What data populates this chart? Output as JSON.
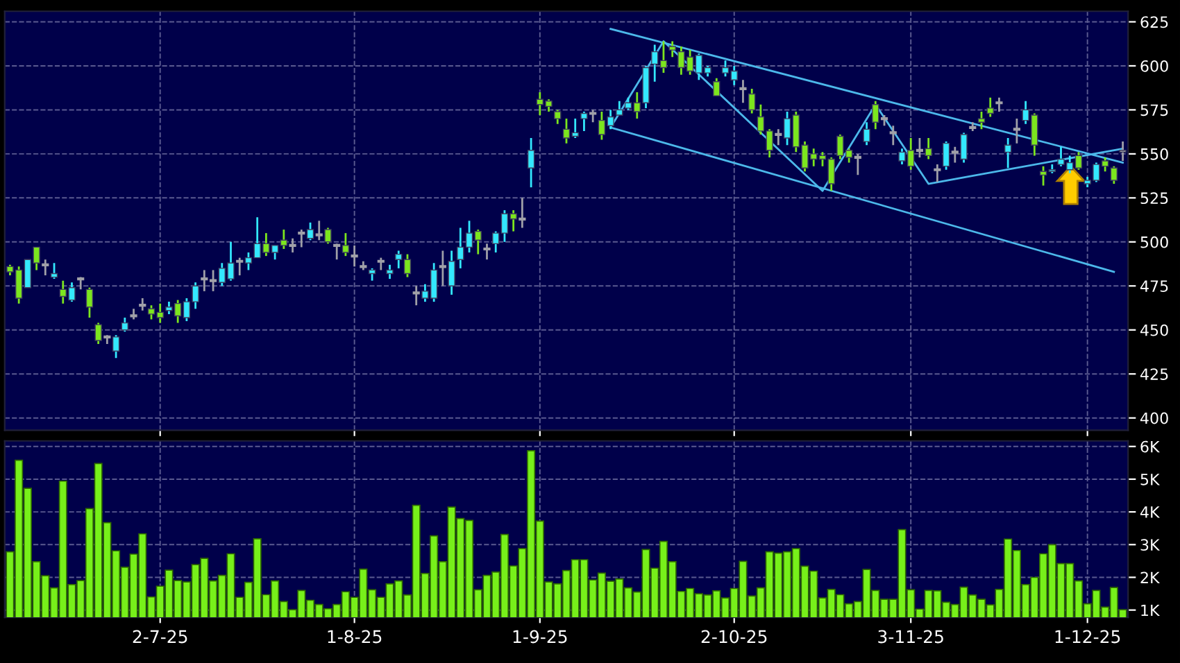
{
  "chart_data": [
    {
      "type": "candlestick",
      "ylim": [
        393,
        631
      ],
      "yticks": [
        400,
        425,
        450,
        475,
        500,
        525,
        550,
        575,
        600,
        625
      ],
      "grid": true,
      "tick_labels": "y",
      "categories": [
        null,
        null,
        null,
        null,
        null,
        null,
        null,
        null,
        null,
        null,
        null,
        null,
        null,
        null,
        null,
        null,
        null,
        null,
        null,
        null,
        null,
        null,
        null,
        null,
        null,
        null,
        null,
        null,
        null,
        null,
        null,
        null,
        null,
        null,
        null,
        null,
        null,
        null,
        null,
        null,
        null,
        null,
        null,
        null,
        null,
        null,
        null,
        null,
        null,
        null,
        null,
        null,
        null,
        null,
        null,
        null,
        null,
        null,
        null,
        null,
        null,
        null,
        null,
        null,
        null,
        null,
        null,
        null,
        null,
        null,
        null,
        null,
        null,
        null,
        null,
        null,
        null,
        null,
        null,
        null,
        null,
        null,
        null,
        null,
        null,
        null,
        null,
        null,
        null,
        null,
        null,
        null,
        null,
        null,
        null,
        null,
        null,
        null,
        null,
        null,
        null,
        null,
        null,
        null,
        null,
        null,
        null,
        null,
        null,
        null,
        null,
        null,
        null,
        null,
        null,
        null,
        null,
        null,
        null,
        null,
        null,
        null,
        null,
        null,
        null,
        null,
        null
      ],
      "series": [
        {
          "type": "candlestick",
          "ohlc": [
            [
              486,
              487,
              481,
              483
            ],
            [
              484,
              486,
              465,
              468
            ],
            [
              474,
              490,
              474,
              490
            ],
            [
              497,
              497,
              484,
              488
            ],
            [
              487,
              490,
              481,
              487
            ],
            [
              480,
              488,
              479,
              482
            ],
            [
              473,
              478,
              465,
              469
            ],
            [
              467,
              477,
              466,
              474
            ],
            [
              479,
              480,
              473,
              479
            ],
            [
              473,
              474,
              457,
              463
            ],
            [
              453,
              454,
              442,
              444
            ],
            [
              446,
              447,
              442,
              446
            ],
            [
              438,
              447,
              434,
              446
            ],
            [
              450,
              457,
              449,
              454
            ],
            [
              458,
              462,
              456,
              458
            ],
            [
              464,
              468,
              461,
              464
            ],
            [
              462,
              464,
              456,
              459
            ],
            [
              460,
              465,
              454,
              457
            ],
            [
              461,
              466,
              459,
              463
            ],
            [
              465,
              467,
              454,
              458
            ],
            [
              457,
              468,
              455,
              466
            ],
            [
              466,
              477,
              462,
              475
            ],
            [
              479,
              484,
              472,
              479
            ],
            [
              478,
              484,
              472,
              478
            ],
            [
              477,
              488,
              475,
              485
            ],
            [
              479,
              500,
              478,
              488
            ],
            [
              489,
              491,
              481,
              489
            ],
            [
              488,
              494,
              484,
              491
            ],
            [
              491,
              514,
              491,
              499
            ],
            [
              499,
              505,
              492,
              494
            ],
            [
              494,
              498,
              490,
              498
            ],
            [
              501,
              507,
              496,
              498
            ],
            [
              498,
              502,
              494,
              498
            ],
            [
              505,
              507,
              497,
              505
            ],
            [
              502,
              511,
              501,
              507
            ],
            [
              504,
              512,
              501,
              504
            ],
            [
              507,
              508,
              499,
              500
            ],
            [
              498,
              499,
              490,
              498
            ],
            [
              498,
              505,
              492,
              494
            ],
            [
              492,
              498,
              486,
              492
            ],
            [
              486,
              489,
              484,
              486
            ],
            [
              482,
              485,
              478,
              484
            ],
            [
              489,
              491,
              484,
              489
            ],
            [
              482,
              487,
              479,
              484
            ],
            [
              490,
              495,
              485,
              493
            ],
            [
              490,
              493,
              480,
              482
            ],
            [
              471,
              475,
              464,
              471
            ],
            [
              468,
              476,
              466,
              472
            ],
            [
              468,
              488,
              466,
              484
            ],
            [
              486,
              495,
              475,
              486
            ],
            [
              475,
              495,
              470,
              489
            ],
            [
              490,
              508,
              485,
              497
            ],
            [
              497,
              512,
              494,
              505
            ],
            [
              506,
              507,
              493,
              501
            ],
            [
              496,
              499,
              490,
              496
            ],
            [
              499,
              506,
              494,
              505
            ],
            [
              505,
              518,
              500,
              516
            ],
            [
              516,
              518,
              506,
              513
            ],
            [
              513,
              525,
              508,
              513
            ],
            [
              542,
              559,
              531,
              552
            ],
            [
              581,
              585,
              572,
              578
            ],
            [
              580,
              581,
              574,
              577
            ],
            [
              574,
              575,
              567,
              570
            ],
            [
              564,
              570,
              556,
              559
            ],
            [
              560,
              570,
              559,
              562
            ],
            [
              570,
              574,
              563,
              573
            ],
            [
              573,
              575,
              568,
              573
            ],
            [
              569,
              574,
              558,
              561
            ],
            [
              566,
              575,
              564,
              571
            ],
            [
              572,
              580,
              572,
              575
            ],
            [
              576,
              582,
              575,
              579
            ],
            [
              579,
              585,
              570,
              574
            ],
            [
              579,
              600,
              576,
              599
            ],
            [
              601,
              612,
              591,
              608
            ],
            [
              603,
              614,
              596,
              599
            ],
            [
              611,
              614,
              605,
              609
            ],
            [
              608,
              611,
              595,
              599
            ],
            [
              605,
              609,
              595,
              597
            ],
            [
              596,
              607,
              592,
              606
            ],
            [
              596,
              600,
              594,
              599
            ],
            [
              591,
              593,
              583,
              583
            ],
            [
              596,
              603,
              594,
              599
            ],
            [
              592,
              600,
              589,
              597
            ],
            [
              587,
              592,
              579,
              587
            ],
            [
              584,
              587,
              573,
              575
            ],
            [
              571,
              578,
              561,
              563
            ],
            [
              563,
              564,
              548,
              552
            ],
            [
              561,
              564,
              555,
              561
            ],
            [
              559,
              574,
              555,
              570
            ],
            [
              572,
              574,
              551,
              554
            ],
            [
              555,
              557,
              540,
              542
            ],
            [
              550,
              553,
              543,
              547
            ],
            [
              549,
              551,
              543,
              547
            ],
            [
              547,
              548,
              529,
              533
            ],
            [
              560,
              561,
              547,
              549
            ],
            [
              552,
              553,
              545,
              548
            ],
            [
              548,
              550,
              538,
              548
            ],
            [
              557,
              568,
              555,
              564
            ],
            [
              578,
              580,
              564,
              568
            ],
            [
              570,
              572,
              566,
              570
            ],
            [
              562,
              566,
              555,
              562
            ],
            [
              546,
              553,
              544,
              551
            ],
            [
              552,
              559,
              541,
              543
            ],
            [
              552,
              559,
              548,
              552
            ],
            [
              553,
              559,
              547,
              549
            ],
            [
              541,
              544,
              534,
              541
            ],
            [
              543,
              557,
              541,
              556
            ],
            [
              551,
              554,
              545,
              551
            ],
            [
              547,
              562,
              545,
              561
            ],
            [
              565,
              568,
              563,
              565
            ],
            [
              570,
              574,
              564,
              568
            ],
            [
              576,
              582,
              571,
              573
            ],
            [
              579,
              582,
              574,
              579
            ],
            [
              551,
              559,
              542,
              555
            ],
            [
              564,
              570,
              556,
              564
            ],
            [
              569,
              580,
              567,
              575
            ],
            [
              572,
              573,
              549,
              555
            ],
            [
              540,
              543,
              532,
              538
            ],
            [
              540,
              544,
              539,
              541
            ],
            [
              544,
              554,
              543,
              547
            ],
            [
              541,
              549,
              539,
              545
            ],
            [
              549,
              551,
              541,
              542
            ],
            [
              533,
              537,
              531,
              535
            ],
            [
              535,
              545,
              534,
              544
            ],
            [
              546,
              548,
              540,
              543
            ],
            [
              542,
              543,
              533,
              535
            ],
            [
              551,
              557,
              546,
              552
            ]
          ],
          "colors": [
            "#7ce61e",
            "#7ce61e",
            "#33e8ff",
            "#7ce61e",
            "#a0a0a8",
            "#33e8ff",
            "#7ce61e",
            "#33e8ff",
            "#a0a0a8",
            "#7ce61e",
            "#7ce61e",
            "#a0a0a8",
            "#33e8ff",
            "#33e8ff",
            "#a0a0a8",
            "#a0a0a8",
            "#7ce61e",
            "#7ce61e",
            "#33e8ff",
            "#7ce61e",
            "#33e8ff",
            "#33e8ff",
            "#a0a0a8",
            "#a0a0a8",
            "#33e8ff",
            "#33e8ff",
            "#a0a0a8",
            "#33e8ff",
            "#33e8ff",
            "#7ce61e",
            "#33e8ff",
            "#7ce61e",
            "#a0a0a8",
            "#a0a0a8",
            "#33e8ff",
            "#a0a0a8",
            "#7ce61e",
            "#a0a0a8",
            "#7ce61e",
            "#a0a0a8",
            "#a0a0a8",
            "#33e8ff",
            "#a0a0a8",
            "#33e8ff",
            "#33e8ff",
            "#7ce61e",
            "#a0a0a8",
            "#33e8ff",
            "#33e8ff",
            "#a0a0a8",
            "#33e8ff",
            "#33e8ff",
            "#33e8ff",
            "#7ce61e",
            "#a0a0a8",
            "#33e8ff",
            "#33e8ff",
            "#7ce61e",
            "#a0a0a8",
            "#33e8ff",
            "#7ce61e",
            "#7ce61e",
            "#7ce61e",
            "#7ce61e",
            "#33e8ff",
            "#33e8ff",
            "#a0a0a8",
            "#7ce61e",
            "#33e8ff",
            "#33e8ff",
            "#33e8ff",
            "#7ce61e",
            "#33e8ff",
            "#33e8ff",
            "#7ce61e",
            "#7ce61e",
            "#7ce61e",
            "#7ce61e",
            "#33e8ff",
            "#33e8ff",
            "#7ce61e",
            "#33e8ff",
            "#33e8ff",
            "#a0a0a8",
            "#7ce61e",
            "#7ce61e",
            "#7ce61e",
            "#a0a0a8",
            "#33e8ff",
            "#7ce61e",
            "#7ce61e",
            "#7ce61e",
            "#7ce61e",
            "#7ce61e",
            "#7ce61e",
            "#7ce61e",
            "#a0a0a8",
            "#33e8ff",
            "#7ce61e",
            "#a0a0a8",
            "#a0a0a8",
            "#33e8ff",
            "#7ce61e",
            "#a0a0a8",
            "#7ce61e",
            "#a0a0a8",
            "#33e8ff",
            "#a0a0a8",
            "#33e8ff",
            "#a0a0a8",
            "#7ce61e",
            "#7ce61e",
            "#a0a0a8",
            "#33e8ff",
            "#a0a0a8",
            "#33e8ff",
            "#7ce61e",
            "#7ce61e",
            "#33e8ff",
            "#33e8ff",
            "#33e8ff",
            "#7ce61e",
            "#33e8ff",
            "#33e8ff",
            "#7ce61e",
            "#7ce61e",
            "#a0a0a8"
          ]
        },
        {
          "type": "line",
          "color": "#4cb8ea",
          "values": [
            null,
            null,
            null,
            null,
            null,
            null,
            null,
            null,
            null,
            null,
            null,
            null,
            null,
            null,
            null,
            null,
            null,
            null,
            null,
            null,
            null,
            null,
            null,
            null,
            null,
            null,
            null,
            null,
            null,
            null,
            null,
            null,
            null,
            null,
            null,
            null,
            null,
            null,
            null,
            null,
            null,
            null,
            null,
            null,
            null,
            null,
            null,
            null,
            null,
            null,
            null,
            null,
            null,
            null,
            null,
            null,
            null,
            null,
            null,
            null,
            null,
            null,
            null,
            null,
            null,
            null,
            null,
            null,
            565,
            null,
            null,
            null,
            null,
            null,
            614,
            null,
            null,
            null,
            null,
            null,
            null,
            null,
            null,
            null,
            null,
            null,
            null,
            null,
            null,
            null,
            null,
            null,
            529,
            null,
            null,
            null,
            null,
            null,
            578,
            null,
            null,
            null,
            null,
            null,
            533,
            null,
            null,
            null,
            null,
            null,
            null,
            null,
            null,
            null,
            null,
            null,
            null,
            null,
            null,
            null,
            null,
            null,
            null,
            null,
            null,
            null,
            553
          ]
        },
        {
          "type": "line",
          "color": "#4cb8ea",
          "values": [
            null,
            null,
            null,
            null,
            null,
            null,
            null,
            null,
            null,
            null,
            null,
            null,
            null,
            null,
            null,
            null,
            null,
            null,
            null,
            null,
            null,
            null,
            null,
            null,
            null,
            null,
            null,
            null,
            null,
            null,
            null,
            null,
            null,
            null,
            null,
            null,
            null,
            null,
            null,
            null,
            null,
            null,
            null,
            null,
            null,
            null,
            null,
            null,
            null,
            null,
            null,
            null,
            null,
            null,
            null,
            null,
            null,
            null,
            null,
            null,
            null,
            null,
            null,
            null,
            null,
            null,
            null,
            null,
            621,
            null,
            null,
            null,
            null,
            null,
            null,
            null,
            null,
            null,
            null,
            null,
            null,
            null,
            null,
            null,
            null,
            null,
            null,
            null,
            null,
            null,
            null,
            null,
            null,
            null,
            null,
            null,
            null,
            null,
            null,
            null,
            null,
            null,
            null,
            null,
            null,
            null,
            null,
            null,
            null,
            null,
            null,
            null,
            null,
            null,
            null,
            null,
            null,
            null,
            null,
            null,
            null,
            null,
            null,
            null,
            null,
            null,
            545
          ]
        },
        {
          "type": "line",
          "color": "#4cb8ea",
          "values": [
            null,
            null,
            null,
            null,
            null,
            null,
            null,
            null,
            null,
            null,
            null,
            null,
            null,
            null,
            null,
            null,
            null,
            null,
            null,
            null,
            null,
            null,
            null,
            null,
            null,
            null,
            null,
            null,
            null,
            null,
            null,
            null,
            null,
            null,
            null,
            null,
            null,
            null,
            null,
            null,
            null,
            null,
            null,
            null,
            null,
            null,
            null,
            null,
            null,
            null,
            null,
            null,
            null,
            null,
            null,
            null,
            null,
            null,
            null,
            null,
            null,
            null,
            null,
            null,
            null,
            null,
            null,
            null,
            565,
            null,
            null,
            null,
            null,
            null,
            null,
            null,
            null,
            null,
            null,
            null,
            null,
            null,
            null,
            null,
            null,
            null,
            null,
            null,
            null,
            null,
            null,
            null,
            null,
            null,
            null,
            null,
            null,
            null,
            null,
            null,
            null,
            null,
            null,
            null,
            null,
            null,
            null,
            null,
            null,
            null,
            null,
            null,
            null,
            null,
            null,
            null,
            null,
            null,
            null,
            null,
            null,
            null,
            null,
            null,
            null,
            483,
            null
          ]
        }
      ]
    },
    {
      "type": "bar",
      "color": "#77f01a",
      "ylim": [
        0.78,
        6.17
      ],
      "yticks": [
        {
          "value": 1,
          "label": "1K"
        },
        {
          "value": 2,
          "label": "2K"
        },
        {
          "value": 3,
          "label": "3K"
        },
        {
          "value": 4,
          "label": "4K"
        },
        {
          "value": 5,
          "label": "5K"
        },
        {
          "value": 6,
          "label": "6K"
        }
      ],
      "grid": true,
      "categories": [
        null,
        null,
        null,
        null,
        null,
        null,
        null,
        null,
        null,
        null,
        null,
        null,
        null,
        null,
        null,
        null,
        null,
        "2-7-25",
        null,
        null,
        null,
        null,
        null,
        null,
        null,
        null,
        null,
        null,
        null,
        null,
        null,
        null,
        null,
        null,
        null,
        null,
        null,
        null,
        null,
        "1-8-25",
        null,
        null,
        null,
        null,
        null,
        null,
        null,
        null,
        null,
        null,
        null,
        null,
        null,
        null,
        null,
        null,
        null,
        null,
        null,
        null,
        "1-9-25",
        null,
        null,
        null,
        null,
        null,
        null,
        null,
        null,
        null,
        null,
        null,
        null,
        null,
        null,
        null,
        null,
        null,
        null,
        null,
        null,
        null,
        "2-10-25",
        null,
        null,
        null,
        null,
        null,
        null,
        null,
        null,
        null,
        null,
        null,
        null,
        null,
        null,
        null,
        null,
        null,
        null,
        null,
        "3-11-25",
        null,
        null,
        null,
        null,
        null,
        null,
        null,
        null,
        null,
        null,
        null,
        null,
        null,
        null,
        null,
        null,
        null,
        null,
        null,
        "1-12-25",
        null,
        null,
        null,
        null
      ],
      "values": [
        2.78,
        5.58,
        4.72,
        2.48,
        2.05,
        1.68,
        4.94,
        1.78,
        1.9,
        4.1,
        5.48,
        3.67,
        2.81,
        2.31,
        2.71,
        3.33,
        1.4,
        1.73,
        2.22,
        1.9,
        1.86,
        2.39,
        2.58,
        1.89,
        2.06,
        2.72,
        1.39,
        1.85,
        3.18,
        1.47,
        1.89,
        1.26,
        1.01,
        1.6,
        1.3,
        1.17,
        1.04,
        1.17,
        1.56,
        1.39,
        2.25,
        1.62,
        1.39,
        1.8,
        1.89,
        1.46,
        4.2,
        2.12,
        3.27,
        2.48,
        4.15,
        3.8,
        3.74,
        1.62,
        2.06,
        2.16,
        3.31,
        2.35,
        2.88,
        5.87,
        3.72,
        1.86,
        1.8,
        2.21,
        2.54,
        2.54,
        1.92,
        2.13,
        1.88,
        1.95,
        1.68,
        1.55,
        2.85,
        2.28,
        3.1,
        2.48,
        1.57,
        1.66,
        1.5,
        1.46,
        1.59,
        1.37,
        1.66,
        2.49,
        1.43,
        1.68,
        2.78,
        2.74,
        2.78,
        2.88,
        2.34,
        2.19,
        1.37,
        1.63,
        1.47,
        1.19,
        1.26,
        2.24,
        1.6,
        1.33,
        1.33,
        3.46,
        1.62,
        1.03,
        1.6,
        1.59,
        1.24,
        1.17,
        1.7,
        1.46,
        1.33,
        1.16,
        1.63,
        3.17,
        2.82,
        1.78,
        2.0,
        2.72,
        3.0,
        2.42,
        2.42,
        1.89,
        1.19,
        1.6,
        1.09,
        1.69,
        1.01
      ]
    }
  ]
}
